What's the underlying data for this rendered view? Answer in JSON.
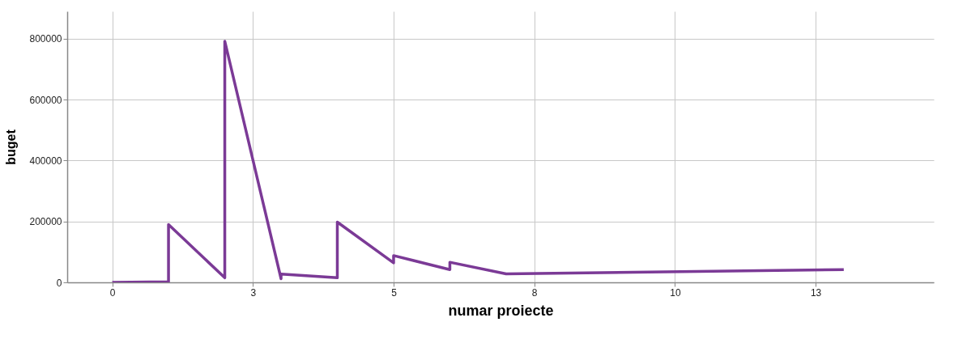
{
  "chart_data": {
    "type": "line",
    "xlabel": "numar proiecte",
    "ylabel": "buget",
    "x": [
      0,
      1,
      1,
      2,
      2,
      3,
      3,
      4,
      4,
      5,
      5,
      6,
      6,
      7,
      13
    ],
    "series": [
      {
        "color": "#7b3a96",
        "values": [
          0,
          2000,
          190000,
          15000,
          792000,
          12000,
          27000,
          15000,
          198000,
          64000,
          88000,
          42000,
          66000,
          28000,
          42000
        ]
      }
    ],
    "xlim": [
      -0.8,
      14.6
    ],
    "xticks": [
      0,
      {
        "value": 2.5,
        "label": "3"
      },
      5,
      {
        "value": 7.5,
        "label": "8"
      },
      10,
      {
        "value": 12.5,
        "label": "13"
      }
    ],
    "ylim": [
      0,
      890000
    ],
    "yticks": [
      0,
      200000,
      400000,
      600000,
      800000
    ],
    "grid": true,
    "marker": "none",
    "line_style": "solid"
  }
}
